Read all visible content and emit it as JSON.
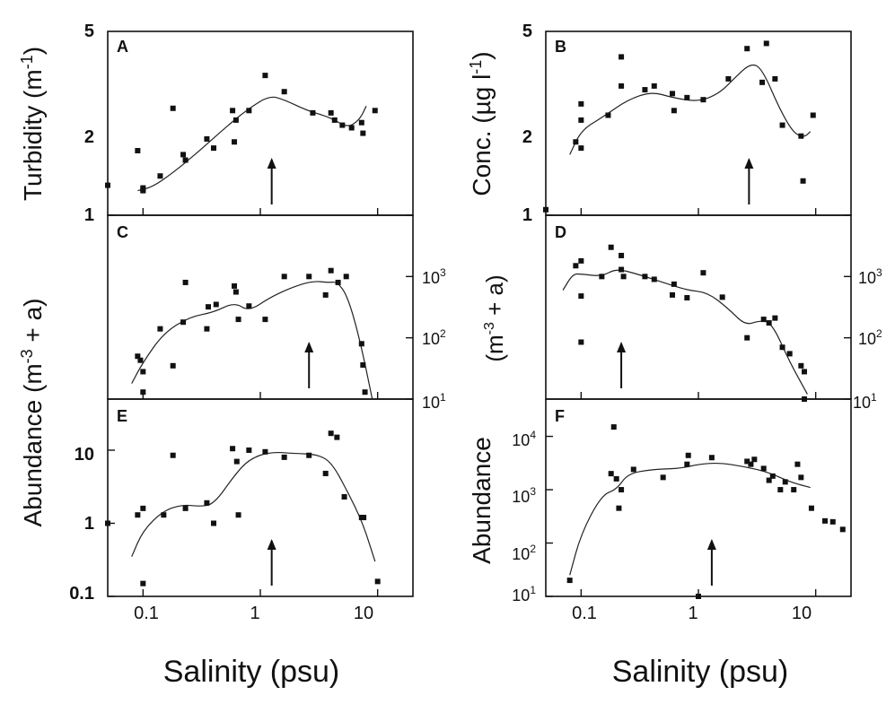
{
  "figure": {
    "xlabel_left": "Salinity (psu)",
    "xlabel_right": "Salinity (psu)",
    "ylabel_A": "Turbidity (m-1)",
    "ylabel_B": "Conc. (µg l-1)",
    "ylabel_CE": "Abundance (m-3 + a)",
    "ylabel_D": "Abundance (m-3 + a)",
    "ylabel_F": "Abundance (m-3 + a)"
  },
  "chart_data": [
    {
      "panel": "A",
      "type": "scatter",
      "ylabel": "Turbidity (m-1)",
      "xscale": "log",
      "xlim": [
        0.05,
        20
      ],
      "yscale": "log",
      "ylim": [
        1,
        5
      ],
      "yticks": [
        "1",
        "2",
        "5"
      ],
      "arrow_x": 1.25,
      "points": [
        [
          0.05,
          1.3
        ],
        [
          0.09,
          1.76
        ],
        [
          0.1,
          1.25
        ],
        [
          0.1,
          1.27
        ],
        [
          0.1,
          1.24
        ],
        [
          0.14,
          1.41
        ],
        [
          0.18,
          2.55
        ],
        [
          0.22,
          1.7
        ],
        [
          0.23,
          1.62
        ],
        [
          0.35,
          1.95
        ],
        [
          0.4,
          1.8
        ],
        [
          0.58,
          2.5
        ],
        [
          0.6,
          1.9
        ],
        [
          0.62,
          2.3
        ],
        [
          0.8,
          2.5
        ],
        [
          1.1,
          3.4
        ],
        [
          1.6,
          2.95
        ],
        [
          2.8,
          2.45
        ],
        [
          4.0,
          2.45
        ],
        [
          4.3,
          2.3
        ],
        [
          5.0,
          2.2
        ],
        [
          6.0,
          2.15
        ],
        [
          7.3,
          2.25
        ],
        [
          7.5,
          2.05
        ],
        [
          9.5,
          2.5
        ]
      ],
      "curve": [
        [
          0.09,
          1.24
        ],
        [
          0.12,
          1.28
        ],
        [
          0.18,
          1.45
        ],
        [
          0.3,
          1.75
        ],
        [
          0.5,
          2.15
        ],
        [
          0.8,
          2.55
        ],
        [
          1.2,
          2.85
        ],
        [
          1.6,
          2.75
        ],
        [
          2.5,
          2.5
        ],
        [
          4.0,
          2.35
        ],
        [
          5.5,
          2.15
        ],
        [
          7.0,
          2.3
        ],
        [
          8.0,
          2.6
        ]
      ]
    },
    {
      "panel": "B",
      "type": "scatter",
      "ylabel": "Conc. (µg l-1)",
      "xscale": "log",
      "xlim": [
        0.05,
        20
      ],
      "yscale": "log",
      "ylim": [
        1,
        5
      ],
      "yticks": [
        "1",
        "2",
        "5"
      ],
      "arrow_x": 2.7,
      "points": [
        [
          0.05,
          1.05
        ],
        [
          0.09,
          1.9
        ],
        [
          0.1,
          1.8
        ],
        [
          0.1,
          2.3
        ],
        [
          0.1,
          2.65
        ],
        [
          0.17,
          2.4
        ],
        [
          0.22,
          4.0
        ],
        [
          0.22,
          3.1
        ],
        [
          0.35,
          3.0
        ],
        [
          0.42,
          3.1
        ],
        [
          0.6,
          2.9
        ],
        [
          0.62,
          2.5
        ],
        [
          0.8,
          2.8
        ],
        [
          1.1,
          2.75
        ],
        [
          1.8,
          3.3
        ],
        [
          2.6,
          4.3
        ],
        [
          3.5,
          3.2
        ],
        [
          3.8,
          4.5
        ],
        [
          4.5,
          3.3
        ],
        [
          5.2,
          2.2
        ],
        [
          7.5,
          2.0
        ],
        [
          7.8,
          1.35
        ],
        [
          9.5,
          2.4
        ]
      ],
      "curve": [
        [
          0.08,
          1.7
        ],
        [
          0.1,
          2.1
        ],
        [
          0.15,
          2.35
        ],
        [
          0.25,
          2.75
        ],
        [
          0.4,
          2.95
        ],
        [
          0.6,
          2.8
        ],
        [
          1.0,
          2.7
        ],
        [
          1.5,
          2.9
        ],
        [
          2.0,
          3.3
        ],
        [
          2.8,
          3.8
        ],
        [
          3.5,
          3.6
        ],
        [
          5.0,
          2.5
        ],
        [
          6.5,
          2.05
        ],
        [
          8.0,
          1.98
        ],
        [
          9.0,
          2.08
        ]
      ]
    },
    {
      "panel": "C",
      "type": "scatter",
      "y2label": "Abundance (m-3 + a)",
      "xscale": "log",
      "xlim": [
        0.05,
        20
      ],
      "yscale": "log",
      "ylim": [
        10,
        10000
      ],
      "y2ticks": [
        "10",
        "10",
        "10"
      ],
      "y2tick_exponents": [
        "3",
        "2",
        "1"
      ],
      "arrow_x": 2.6,
      "points": [
        [
          0.09,
          50
        ],
        [
          0.095,
          43
        ],
        [
          0.1,
          28
        ],
        [
          0.1,
          13
        ],
        [
          0.14,
          140
        ],
        [
          0.18,
          35
        ],
        [
          0.22,
          180
        ],
        [
          0.23,
          800
        ],
        [
          0.35,
          140
        ],
        [
          0.36,
          320
        ],
        [
          0.42,
          350
        ],
        [
          0.6,
          700
        ],
        [
          0.62,
          560
        ],
        [
          0.65,
          200
        ],
        [
          0.8,
          330
        ],
        [
          1.1,
          200
        ],
        [
          1.6,
          1000
        ],
        [
          2.6,
          1000
        ],
        [
          3.6,
          500
        ],
        [
          4.0,
          1250
        ],
        [
          4.6,
          800
        ],
        [
          5.4,
          1000
        ],
        [
          7.3,
          80
        ],
        [
          7.5,
          36
        ],
        [
          7.8,
          13
        ]
      ],
      "curve": [
        [
          0.08,
          18
        ],
        [
          0.1,
          40
        ],
        [
          0.15,
          120
        ],
        [
          0.25,
          220
        ],
        [
          0.4,
          260
        ],
        [
          0.6,
          380
        ],
        [
          0.8,
          270
        ],
        [
          1.2,
          450
        ],
        [
          1.8,
          650
        ],
        [
          2.8,
          850
        ],
        [
          3.8,
          800
        ],
        [
          4.5,
          820
        ],
        [
          5.5,
          500
        ],
        [
          7.0,
          100
        ],
        [
          9.0,
          9
        ]
      ]
    },
    {
      "panel": "D",
      "type": "scatter",
      "y2label": "Abundance (m-3 + a)",
      "xscale": "log",
      "xlim": [
        0.05,
        20
      ],
      "yscale": "log",
      "ylim": [
        10,
        10000
      ],
      "y2ticks": [
        "10",
        "10",
        "10"
      ],
      "y2tick_exponents": [
        "3",
        "2",
        "1"
      ],
      "arrow_x": 0.22,
      "points": [
        [
          0.09,
          1500
        ],
        [
          0.1,
          1800
        ],
        [
          0.1,
          480
        ],
        [
          0.1,
          85
        ],
        [
          0.15,
          1000
        ],
        [
          0.18,
          3000
        ],
        [
          0.22,
          1300
        ],
        [
          0.22,
          2200
        ],
        [
          0.23,
          1000
        ],
        [
          0.35,
          1000
        ],
        [
          0.42,
          900
        ],
        [
          0.6,
          500
        ],
        [
          0.62,
          750
        ],
        [
          0.8,
          450
        ],
        [
          1.1,
          1150
        ],
        [
          1.6,
          460
        ],
        [
          2.6,
          100
        ],
        [
          3.6,
          200
        ],
        [
          4.0,
          175
        ],
        [
          4.5,
          210
        ],
        [
          5.2,
          70
        ],
        [
          6.0,
          55
        ],
        [
          7.5,
          35
        ],
        [
          8.0,
          28
        ],
        [
          8.0,
          10
        ]
      ],
      "curve": [
        [
          0.07,
          600
        ],
        [
          0.085,
          1100
        ],
        [
          0.1,
          1100
        ],
        [
          0.15,
          1000
        ],
        [
          0.2,
          1350
        ],
        [
          0.3,
          1100
        ],
        [
          0.5,
          800
        ],
        [
          0.8,
          600
        ],
        [
          1.2,
          550
        ],
        [
          1.8,
          300
        ],
        [
          2.5,
          160
        ],
        [
          3.3,
          190
        ],
        [
          4.2,
          180
        ],
        [
          6.0,
          40
        ],
        [
          8.5,
          12
        ]
      ]
    },
    {
      "panel": "E",
      "type": "scatter",
      "xscale": "log",
      "xlim": [
        0.05,
        20
      ],
      "yscale": "log",
      "ylim": [
        0.1,
        50
      ],
      "yticks": [
        "0.1",
        "1",
        "10"
      ],
      "xticks": [
        "0.1",
        "1",
        "10"
      ],
      "xlabel": "Salinity (psu)",
      "arrow_x": 1.25,
      "points": [
        [
          0.05,
          1.0
        ],
        [
          0.09,
          1.3
        ],
        [
          0.1,
          1.6
        ],
        [
          0.1,
          0.15
        ],
        [
          0.15,
          1.3
        ],
        [
          0.18,
          8.5
        ],
        [
          0.23,
          1.6
        ],
        [
          0.35,
          1.9
        ],
        [
          0.4,
          1.0
        ],
        [
          0.58,
          10.5
        ],
        [
          0.65,
          1.3
        ],
        [
          0.63,
          7.0
        ],
        [
          0.8,
          10
        ],
        [
          1.1,
          9.5
        ],
        [
          1.6,
          8.0
        ],
        [
          2.6,
          8.5
        ],
        [
          3.6,
          4.8
        ],
        [
          4.0,
          17
        ],
        [
          4.5,
          15
        ],
        [
          5.2,
          2.3
        ],
        [
          7.3,
          1.2
        ],
        [
          7.6,
          1.2
        ],
        [
          10,
          0.16
        ]
      ],
      "curve": [
        [
          0.08,
          0.35
        ],
        [
          0.1,
          0.8
        ],
        [
          0.15,
          1.5
        ],
        [
          0.22,
          1.8
        ],
        [
          0.3,
          1.7
        ],
        [
          0.4,
          1.8
        ],
        [
          0.6,
          4.5
        ],
        [
          0.8,
          7.5
        ],
        [
          1.2,
          9.5
        ],
        [
          2.0,
          9.0
        ],
        [
          3.0,
          8.8
        ],
        [
          4.0,
          7.0
        ],
        [
          5.5,
          2.8
        ],
        [
          7.5,
          1.0
        ],
        [
          9.5,
          0.3
        ]
      ]
    },
    {
      "panel": "F",
      "type": "scatter",
      "xscale": "log",
      "xlim": [
        0.05,
        20
      ],
      "yscale": "log",
      "ylim": [
        10,
        50000
      ],
      "yticks": [
        "10",
        "10",
        "10",
        "10"
      ],
      "ytick_exponents": [
        "1",
        "2",
        "3",
        "4"
      ],
      "xticks": [
        "0.1",
        "1",
        "10"
      ],
      "xlabel": "Salinity (psu)",
      "arrow_x": 1.3,
      "points": [
        [
          0.08,
          20
        ],
        [
          0.18,
          2000
        ],
        [
          0.19,
          15000
        ],
        [
          0.2,
          1600
        ],
        [
          0.21,
          450
        ],
        [
          0.22,
          1000
        ],
        [
          0.28,
          2400
        ],
        [
          0.5,
          1700
        ],
        [
          0.8,
          3000
        ],
        [
          0.82,
          4400
        ],
        [
          1.0,
          10
        ],
        [
          1.3,
          4000
        ],
        [
          2.6,
          3400
        ],
        [
          2.8,
          3000
        ],
        [
          3.0,
          3700
        ],
        [
          3.6,
          2500
        ],
        [
          4.0,
          1500
        ],
        [
          4.3,
          1800
        ],
        [
          5.0,
          1000
        ],
        [
          5.5,
          1400
        ],
        [
          6.5,
          1000
        ],
        [
          7.0,
          3000
        ],
        [
          7.5,
          1700
        ],
        [
          9.2,
          450
        ],
        [
          12,
          260
        ],
        [
          14,
          250
        ],
        [
          17,
          180
        ]
      ],
      "curve": [
        [
          0.08,
          25
        ],
        [
          0.1,
          150
        ],
        [
          0.15,
          800
        ],
        [
          0.2,
          1000
        ],
        [
          0.25,
          2000
        ],
        [
          0.4,
          2400
        ],
        [
          0.7,
          2500
        ],
        [
          1.0,
          3000
        ],
        [
          1.5,
          3200
        ],
        [
          2.5,
          2700
        ],
        [
          4.0,
          2100
        ],
        [
          6.0,
          1400
        ],
        [
          9.0,
          1100
        ]
      ]
    }
  ]
}
